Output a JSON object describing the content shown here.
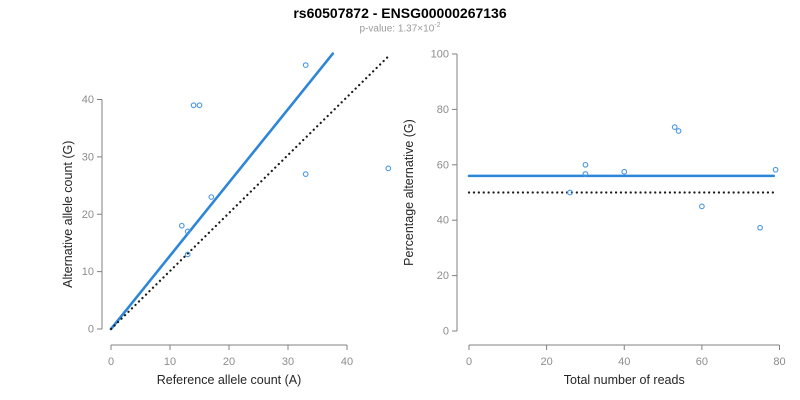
{
  "header": {
    "title": "rs60507872 - ENSG00000267136",
    "p_value_prefix": "p-value: 1.37×10",
    "p_value_exponent": "-2"
  },
  "colors": {
    "accent_line": "#2e86d8",
    "point_stroke": "#4a97e5",
    "dotted_line": "#1a1a1a",
    "axis": "#808080",
    "tick_label": "#8c8c8c",
    "axis_title": "#262626",
    "title": "#000000",
    "subtitle": "#9a9a9a"
  },
  "chart_data": [
    {
      "type": "scatter",
      "panel": "allele-counts",
      "xlabel": "Reference allele count (A)",
      "ylabel": "Alternative allele count (G)",
      "xlim": [
        0,
        47
      ],
      "ylim": [
        0,
        48
      ],
      "xticks": [
        0,
        10,
        20,
        30,
        40
      ],
      "yticks": [
        0,
        10,
        20,
        30,
        40
      ],
      "grid": false,
      "legend": "none",
      "points": [
        [
          12,
          18
        ],
        [
          13,
          17
        ],
        [
          13,
          13
        ],
        [
          14,
          39
        ],
        [
          15,
          39
        ],
        [
          17,
          23
        ],
        [
          33,
          46
        ],
        [
          33,
          27
        ],
        [
          47,
          28
        ]
      ],
      "lines": [
        {
          "name": "regression-line",
          "x1": 0,
          "y1": 0,
          "x2": 37.6,
          "y2": 48,
          "style": "solid",
          "color": "accent"
        },
        {
          "name": "identity-line",
          "x1": 0,
          "y1": 0,
          "x2": 47,
          "y2": 47.5,
          "style": "dotted",
          "color": "black"
        }
      ]
    },
    {
      "type": "scatter",
      "panel": "percentage-vs-reads",
      "xlabel": "Total number of reads",
      "ylabel": "Percentage alternative (G)",
      "xlim": [
        0,
        80
      ],
      "ylim": [
        0,
        100
      ],
      "xticks": [
        0,
        20,
        40,
        60,
        80
      ],
      "yticks": [
        0,
        20,
        40,
        60,
        80,
        100
      ],
      "grid": false,
      "legend": "none",
      "points": [
        [
          26,
          50
        ],
        [
          30,
          60
        ],
        [
          30,
          56.7
        ],
        [
          40,
          57.5
        ],
        [
          53,
          73.6
        ],
        [
          54,
          72.2
        ],
        [
          60,
          45
        ],
        [
          75,
          37.3
        ],
        [
          79,
          58.2
        ]
      ],
      "lines": [
        {
          "name": "mean-percentage-line",
          "x1": 0,
          "y1": 56,
          "x2": 78.5,
          "y2": 56,
          "style": "solid",
          "color": "accent"
        },
        {
          "name": "fifty-percent-line",
          "x1": 0,
          "y1": 50,
          "x2": 78.5,
          "y2": 50,
          "style": "dotted",
          "color": "black"
        }
      ]
    }
  ]
}
